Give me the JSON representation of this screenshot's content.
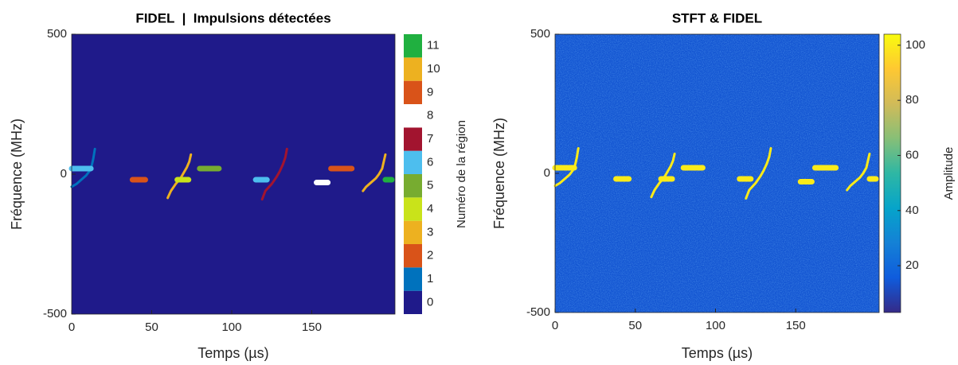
{
  "chart_data": [
    {
      "type": "regions",
      "title": "FIDEL  |  Impulsions détectées",
      "xlabel": "Temps (µs)",
      "ylabel": "Fréquence (MHz)",
      "xlim": [
        0,
        202
      ],
      "xticks": [
        0,
        50,
        100,
        150
      ],
      "ylim": [
        -500,
        500
      ],
      "yticks": [
        -500,
        0,
        500
      ],
      "colorbar": {
        "label": "Numéro de la région",
        "lim": [
          -0.5,
          11.5
        ],
        "ticks": [
          0,
          1,
          2,
          3,
          4,
          5,
          6,
          7,
          8,
          9,
          10,
          11
        ],
        "colors": [
          "#1f1a8a",
          "#0072bd",
          "#d95319",
          "#edb120",
          "#c9e31a",
          "#77ac30",
          "#4dbeee",
          "#a2142f",
          "#ffffff",
          "#d95319",
          "#edb120",
          "#20b040"
        ]
      },
      "background_region": 0,
      "regions": [
        {
          "region": 1,
          "x": [
            0,
            3,
            6,
            9,
            11,
            12.5,
            13.5,
            14.5
          ],
          "y": [
            -45,
            -35,
            -20,
            -5,
            10,
            30,
            55,
            90
          ]
        },
        {
          "region": 6,
          "x": [
            0,
            12
          ],
          "y": [
            20,
            20
          ]
        },
        {
          "region": 2,
          "x": [
            38,
            46
          ],
          "y": [
            -20,
            -20
          ]
        },
        {
          "region": 3,
          "x": [
            60,
            62,
            65,
            68,
            70,
            72,
            73.5,
            74.5
          ],
          "y": [
            -85,
            -60,
            -35,
            -15,
            5,
            25,
            45,
            70
          ]
        },
        {
          "region": 4,
          "x": [
            66,
            73
          ],
          "y": [
            -20,
            -20
          ]
        },
        {
          "region": 5,
          "x": [
            80,
            92
          ],
          "y": [
            20,
            20
          ]
        },
        {
          "region": 6,
          "x": [
            115,
            122
          ],
          "y": [
            -20,
            -20
          ]
        },
        {
          "region": 7,
          "x": [
            119,
            121,
            125,
            128,
            130,
            132,
            133.5,
            134.5
          ],
          "y": [
            -90,
            -60,
            -35,
            -10,
            10,
            35,
            60,
            90
          ]
        },
        {
          "region": 8,
          "x": [
            153,
            160
          ],
          "y": [
            -30,
            -30
          ]
        },
        {
          "region": 9,
          "x": [
            162,
            175
          ],
          "y": [
            20,
            20
          ]
        },
        {
          "region": 10,
          "x": [
            182,
            184,
            187,
            190,
            192,
            194,
            195,
            196
          ],
          "y": [
            -60,
            -45,
            -30,
            -15,
            0,
            20,
            45,
            70
          ]
        },
        {
          "region": 11,
          "x": [
            196,
            200
          ],
          "y": [
            -20,
            -20
          ]
        }
      ]
    },
    {
      "type": "spectrogram",
      "title": "STFT & FIDEL",
      "xlabel": "Temps (µs)",
      "ylabel": "Fréquence (MHz)",
      "xlim": [
        0,
        202
      ],
      "xticks": [
        0,
        50,
        100,
        150
      ],
      "ylim": [
        -500,
        500
      ],
      "yticks": [
        -500,
        0,
        500
      ],
      "colorbar": {
        "label": "Amplitude",
        "lim": [
          3,
          104
        ],
        "ticks": [
          20,
          40,
          60,
          80,
          100
        ],
        "colormap": [
          "#352a87",
          "#0f5cdd",
          "#1481d6",
          "#06a4ca",
          "#2eb7a4",
          "#87bf77",
          "#d1bb59",
          "#fec832",
          "#f9fb0e"
        ]
      },
      "background_amplitude": 14,
      "signal_amplitude": 100,
      "pulses": [
        {
          "x": [
            0,
            3,
            6,
            9,
            11,
            12.5,
            13.5,
            14.5
          ],
          "y": [
            -45,
            -35,
            -20,
            -5,
            10,
            30,
            55,
            90
          ]
        },
        {
          "x": [
            0,
            12
          ],
          "y": [
            20,
            20
          ]
        },
        {
          "x": [
            38,
            46
          ],
          "y": [
            -20,
            -20
          ]
        },
        {
          "x": [
            60,
            62,
            65,
            68,
            70,
            72,
            73.5,
            74.5
          ],
          "y": [
            -85,
            -60,
            -35,
            -15,
            5,
            25,
            45,
            70
          ]
        },
        {
          "x": [
            66,
            73
          ],
          "y": [
            -20,
            -20
          ]
        },
        {
          "x": [
            80,
            92
          ],
          "y": [
            20,
            20
          ]
        },
        {
          "x": [
            115,
            122
          ],
          "y": [
            -20,
            -20
          ]
        },
        {
          "x": [
            119,
            121,
            125,
            128,
            130,
            132,
            133.5,
            134.5
          ],
          "y": [
            -90,
            -60,
            -35,
            -10,
            10,
            35,
            60,
            90
          ]
        },
        {
          "x": [
            153,
            160
          ],
          "y": [
            -30,
            -30
          ]
        },
        {
          "x": [
            162,
            175
          ],
          "y": [
            20,
            20
          ]
        },
        {
          "x": [
            182,
            184,
            187,
            190,
            192,
            194,
            195,
            196
          ],
          "y": [
            -60,
            -45,
            -30,
            -15,
            0,
            20,
            45,
            70
          ]
        },
        {
          "x": [
            196,
            200
          ],
          "y": [
            -20,
            -20
          ]
        }
      ]
    }
  ]
}
